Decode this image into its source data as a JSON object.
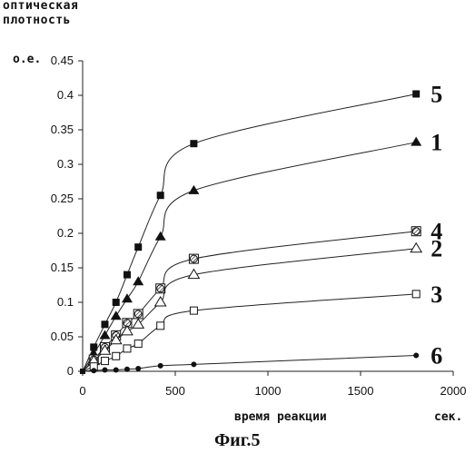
{
  "chart_data": {
    "type": "scatter",
    "ylabel": "оптическая плотность",
    "yunit": "о.е.",
    "xlabel": "время реакции",
    "xunit": "сек.",
    "xlim": [
      0,
      2000
    ],
    "ylim": [
      0,
      0.45
    ],
    "xticks": [
      0,
      500,
      1000,
      1500,
      2000
    ],
    "yticks": [
      0,
      0.05,
      0.1,
      0.15,
      0.2,
      0.25,
      0.3,
      0.35,
      0.4,
      0.45
    ],
    "grid": false,
    "series": [
      {
        "name": "5",
        "marker": "filled-square",
        "x": [
          0,
          60,
          120,
          180,
          240,
          300,
          420,
          600,
          1800
        ],
        "y": [
          0,
          0.035,
          0.068,
          0.1,
          0.14,
          0.18,
          0.255,
          0.33,
          0.402
        ]
      },
      {
        "name": "1",
        "marker": "filled-triangle",
        "x": [
          0,
          60,
          120,
          180,
          240,
          300,
          420,
          600,
          1800
        ],
        "y": [
          0,
          0.025,
          0.052,
          0.08,
          0.105,
          0.13,
          0.195,
          0.262,
          0.332
        ]
      },
      {
        "name": "4",
        "marker": "hatched-circle-square",
        "x": [
          0,
          60,
          120,
          180,
          240,
          300,
          420,
          600,
          1800
        ],
        "y": [
          0,
          0.017,
          0.035,
          0.052,
          0.07,
          0.083,
          0.12,
          0.163,
          0.203
        ]
      },
      {
        "name": "2",
        "marker": "open-triangle",
        "x": [
          0,
          60,
          120,
          180,
          240,
          300,
          420,
          600,
          1800
        ],
        "y": [
          0,
          0.015,
          0.03,
          0.045,
          0.058,
          0.068,
          0.1,
          0.14,
          0.178
        ]
      },
      {
        "name": "3",
        "marker": "open-square",
        "x": [
          0,
          60,
          120,
          180,
          240,
          300,
          420,
          600,
          1800
        ],
        "y": [
          0,
          0.007,
          0.015,
          0.022,
          0.033,
          0.04,
          0.066,
          0.088,
          0.112
        ]
      },
      {
        "name": "6",
        "marker": "filled-circle",
        "x": [
          0,
          60,
          120,
          180,
          240,
          300,
          420,
          600,
          1800
        ],
        "y": [
          0,
          0.001,
          0.002,
          0.002,
          0.003,
          0.004,
          0.008,
          0.01,
          0.023
        ]
      }
    ],
    "caption": "Фиг.5"
  }
}
